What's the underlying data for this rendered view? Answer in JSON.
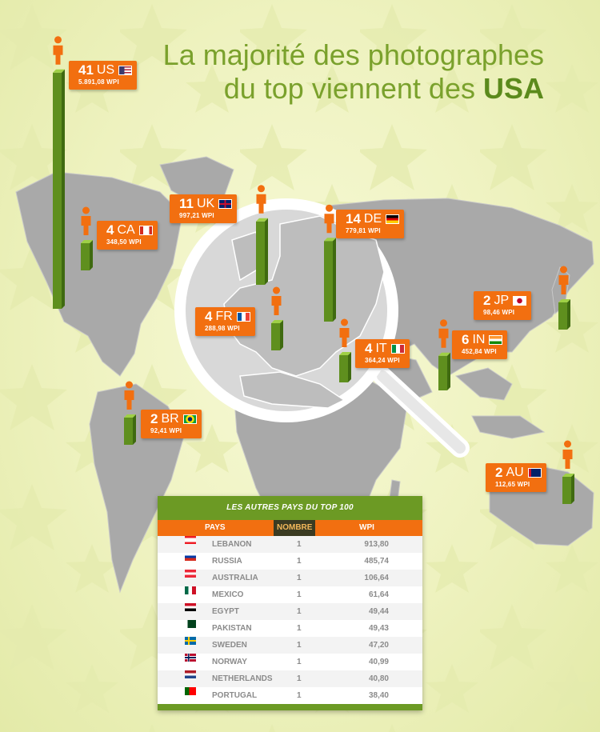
{
  "colors": {
    "accent_orange": "#f26f10",
    "accent_green": "#6c9a24",
    "bar_green": "#5f8f1e",
    "map_gray": "#a9a9a9"
  },
  "title": {
    "line1": "La majorité des photographes",
    "line2_prefix": "du top viennent des ",
    "line2_highlight": "USA"
  },
  "chart_data": {
    "type": "bar",
    "series": [
      {
        "values": [
          41,
          11,
          14,
          4,
          4,
          4,
          2,
          6,
          2,
          2
        ]
      }
    ],
    "categories": [
      "US",
      "UK",
      "DE",
      "CA",
      "FR",
      "IT",
      "JP",
      "IN",
      "BR",
      "AU"
    ],
    "countries": [
      {
        "code": "US",
        "count": "41",
        "wpi": "5.891,08 WPI",
        "flag": "us-flag"
      },
      {
        "code": "UK",
        "count": "11",
        "wpi": "997,21 WPI",
        "flag": "uk-flag"
      },
      {
        "code": "DE",
        "count": "14",
        "wpi": "779,81 WPI",
        "flag": "de-flag"
      },
      {
        "code": "CA",
        "count": "4",
        "wpi": "348,50 WPI",
        "flag": "ca-flag"
      },
      {
        "code": "FR",
        "count": "4",
        "wpi": "288,98 WPI",
        "flag": "fr-flag"
      },
      {
        "code": "IT",
        "count": "4",
        "wpi": "364,24 WPI",
        "flag": "it-flag"
      },
      {
        "code": "JP",
        "count": "2",
        "wpi": "98,46 WPI",
        "flag": "jp-flag"
      },
      {
        "code": "IN",
        "count": "6",
        "wpi": "452,84 WPI",
        "flag": "in-flag"
      },
      {
        "code": "BR",
        "count": "2",
        "wpi": "92,41 WPI",
        "flag": "br-flag"
      },
      {
        "code": "AU",
        "count": "2",
        "wpi": "112,65 WPI",
        "flag": "au-flag"
      }
    ]
  },
  "table": {
    "title": "LES AUTRES PAYS DU TOP 100",
    "headers": {
      "country": "PAYS",
      "count": "NOMBRE",
      "wpi": "WPI"
    },
    "rows": [
      {
        "country": "LEBANON",
        "count": "1",
        "wpi": "913,80",
        "flag": "lebanon-flag"
      },
      {
        "country": "RUSSIA",
        "count": "1",
        "wpi": "485,74",
        "flag": "russia-flag"
      },
      {
        "country": "AUSTRALIA",
        "count": "1",
        "wpi": "106,64",
        "flag": "austria-flag"
      },
      {
        "country": "MEXICO",
        "count": "1",
        "wpi": "61,64",
        "flag": "mexico-flag"
      },
      {
        "country": "EGYPT",
        "count": "1",
        "wpi": "49,44",
        "flag": "egypt-flag"
      },
      {
        "country": "PAKISTAN",
        "count": "1",
        "wpi": "49,43",
        "flag": "pakistan-flag"
      },
      {
        "country": "SWEDEN",
        "count": "1",
        "wpi": "47,20",
        "flag": "sweden-flag"
      },
      {
        "country": "NORWAY",
        "count": "1",
        "wpi": "40,99",
        "flag": "norway-flag"
      },
      {
        "country": "NETHERLANDS",
        "count": "1",
        "wpi": "40,80",
        "flag": "netherlands-flag"
      },
      {
        "country": "PORTUGAL",
        "count": "1",
        "wpi": "38,40",
        "flag": "portugal-flag"
      }
    ]
  }
}
